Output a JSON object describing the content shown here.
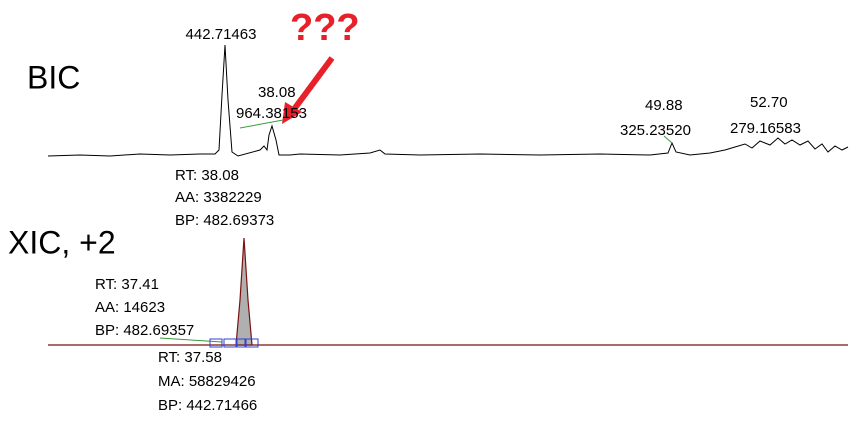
{
  "callout": "???",
  "bic": {
    "label": "BIC",
    "annotations": [
      "442.71463",
      "38.08",
      "964.38153",
      "49.88",
      "325.23520",
      "52.70",
      "279.16583"
    ],
    "info": [
      "RT: 38.08",
      "AA: 3382229",
      "BP: 482.69373"
    ]
  },
  "xic": {
    "label": "XIC, +2",
    "info_left": [
      "RT: 37.41",
      "AA: 14623",
      "BP: 482.69357"
    ],
    "info_bottom": [
      "RT: 37.58",
      "MA: 58829426",
      "BP: 442.71466"
    ]
  }
}
